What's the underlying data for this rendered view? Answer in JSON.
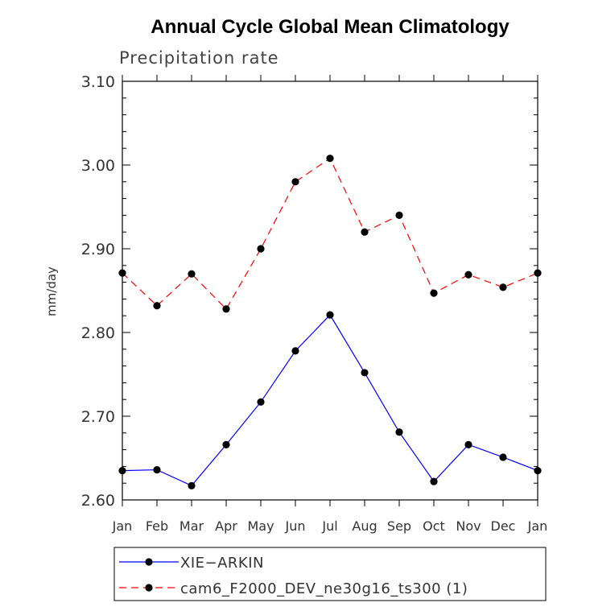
{
  "chart_data": {
    "type": "line",
    "title": "Annual Cycle Global Mean Climatology",
    "subtitle": "Precipitation rate",
    "ylabel": "mm/day",
    "xlabel": "",
    "categories": [
      "Jan",
      "Feb",
      "Mar",
      "Apr",
      "May",
      "Jun",
      "Jul",
      "Aug",
      "Sep",
      "Oct",
      "Nov",
      "Dec",
      "Jan"
    ],
    "ylim": [
      2.6,
      3.1
    ],
    "yticks": [
      "2.60",
      "2.70",
      "2.80",
      "2.90",
      "3.00",
      "3.10"
    ],
    "ytick_values": [
      2.6,
      2.7,
      2.8,
      2.9,
      3.0,
      3.1
    ],
    "grid": false,
    "legend_position": "bottom",
    "series": [
      {
        "name": "XIE−ARKIN",
        "color": "#0000ff",
        "dash": "solid",
        "values": [
          2.635,
          2.636,
          2.617,
          2.666,
          2.717,
          2.778,
          2.821,
          2.752,
          2.681,
          2.622,
          2.666,
          2.651,
          2.635
        ]
      },
      {
        "name": "cam6_F2000_DEV_ne30g16_ts300 (1)",
        "color": "#ff0000",
        "dash": "dashed",
        "values": [
          2.871,
          2.832,
          2.87,
          2.828,
          2.9,
          2.98,
          3.008,
          2.92,
          2.94,
          2.847,
          2.869,
          2.854,
          2.871
        ]
      }
    ]
  }
}
